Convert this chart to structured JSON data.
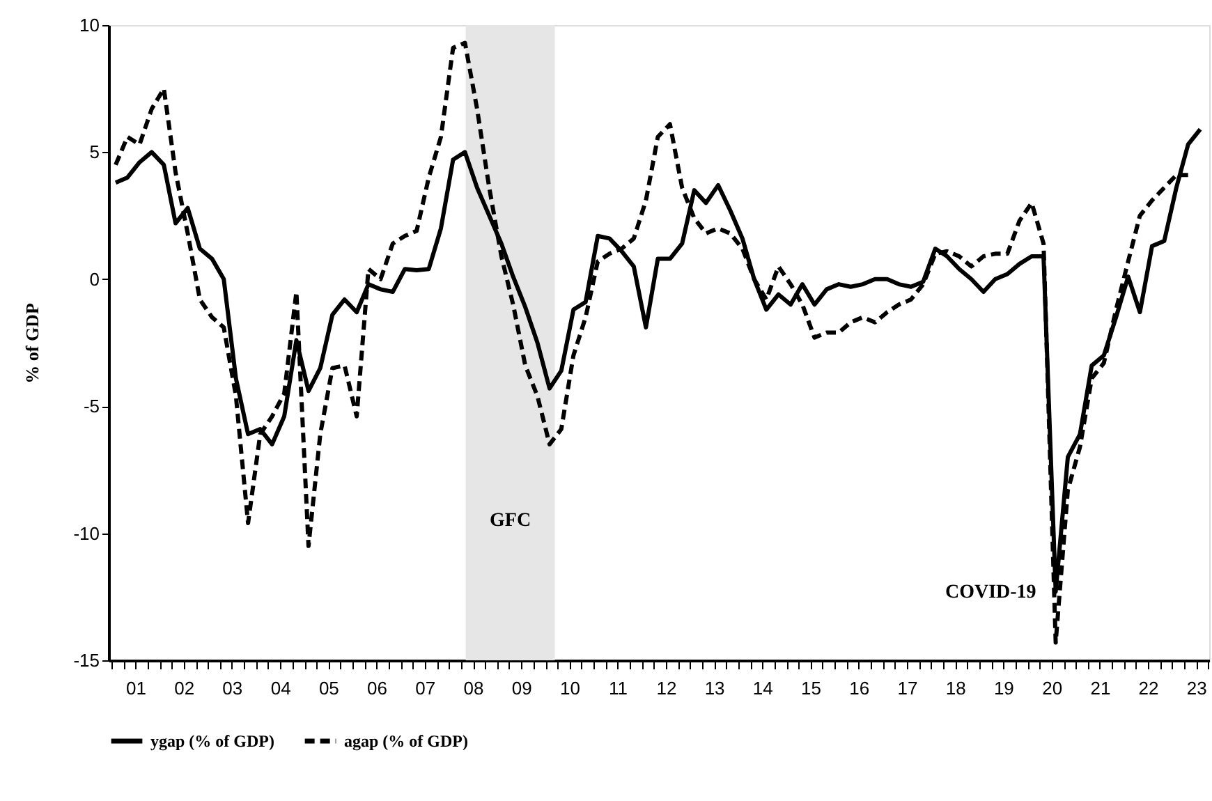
{
  "chart_data": {
    "type": "line",
    "ylabel": "% of GDP",
    "x": [
      "2001-02",
      "2001-05",
      "2001-08",
      "2001-11",
      "2002-02",
      "2002-05",
      "2002-08",
      "2002-11",
      "2003-02",
      "2003-05",
      "2003-08",
      "2003-11",
      "2004-02",
      "2004-05",
      "2004-08",
      "2004-11",
      "2005-02",
      "2005-05",
      "2005-08",
      "2005-11",
      "2006-02",
      "2006-05",
      "2006-08",
      "2006-11",
      "2007-02",
      "2007-05",
      "2007-08",
      "2007-11",
      "2008-02",
      "2008-05",
      "2008-08",
      "2008-11",
      "2009-02",
      "2009-05",
      "2009-08",
      "2009-11",
      "2010-02",
      "2010-05",
      "2010-08",
      "2010-11",
      "2011-02",
      "2011-05",
      "2011-08",
      "2011-11",
      "2012-02",
      "2012-05",
      "2012-08",
      "2012-11",
      "2013-02",
      "2013-05",
      "2013-08",
      "2013-11",
      "2014-02",
      "2014-05",
      "2014-08",
      "2014-11",
      "2015-02",
      "2015-05",
      "2015-08",
      "2015-11",
      "2016-02",
      "2016-05",
      "2016-08",
      "2016-11",
      "2017-02",
      "2017-05",
      "2017-08",
      "2017-11",
      "2018-02",
      "2018-05",
      "2018-08",
      "2018-11",
      "2019-02",
      "2019-05",
      "2019-08",
      "2019-11",
      "2020-02",
      "2020-05",
      "2020-08",
      "2020-11",
      "2021-02",
      "2021-05",
      "2021-08",
      "2021-11",
      "2022-02",
      "2022-05",
      "2022-08",
      "2022-11",
      "2023-02",
      "2023-05",
      "2023-08"
    ],
    "series": [
      {
        "name": "ygap (% of GDP)",
        "color": "#000000",
        "line_style": "solid",
        "values": [
          3.8,
          4.0,
          4.6,
          5.0,
          4.5,
          2.2,
          2.8,
          1.2,
          0.8,
          0.0,
          -3.9,
          -6.1,
          -5.9,
          -6.5,
          -5.4,
          -2.4,
          -4.4,
          -3.5,
          -1.4,
          -0.8,
          -1.3,
          -0.2,
          -0.4,
          -0.5,
          0.4,
          0.35,
          0.4,
          2.0,
          4.7,
          5.0,
          3.6,
          2.5,
          1.4,
          0.1,
          -1.1,
          -2.5,
          -4.3,
          -3.6,
          -1.2,
          -0.9,
          1.7,
          1.6,
          1.1,
          0.5,
          -1.9,
          0.8,
          0.8,
          1.4,
          3.5,
          3.0,
          3.7,
          2.7,
          1.6,
          0.0,
          -1.2,
          -0.6,
          -1.0,
          -0.2,
          -1.0,
          -0.4,
          -0.2,
          -0.3,
          -0.2,
          0.0,
          0.0,
          -0.2,
          -0.3,
          -0.1,
          1.2,
          0.9,
          0.4,
          0.0,
          -0.5,
          0.0,
          0.2,
          0.6,
          0.9,
          0.9,
          -12.3,
          -7.0,
          -6.1,
          -3.4,
          -3.0,
          -1.5,
          0.1,
          -1.3,
          1.3,
          1.5,
          3.6,
          5.3,
          5.9
        ]
      },
      {
        "name": "agap (% of GDP)",
        "color": "#000000",
        "line_style": "dashed",
        "values": [
          4.5,
          5.6,
          5.3,
          6.7,
          7.5,
          4.2,
          1.8,
          -0.8,
          -1.5,
          -1.9,
          -4.6,
          -9.6,
          -6.1,
          -5.4,
          -4.5,
          -0.5,
          -10.5,
          -6.1,
          -3.5,
          -3.4,
          -5.4,
          0.4,
          0.0,
          1.4,
          1.7,
          1.9,
          4.0,
          5.6,
          9.1,
          9.3,
          6.7,
          3.6,
          0.9,
          -1.0,
          -3.4,
          -4.6,
          -6.5,
          -5.9,
          -3.0,
          -1.5,
          0.7,
          1.0,
          1.2,
          1.6,
          3.1,
          5.6,
          6.1,
          3.6,
          2.4,
          1.8,
          2.0,
          1.8,
          1.2,
          0.0,
          -0.8,
          0.5,
          -0.2,
          -1.0,
          -2.3,
          -2.1,
          -2.1,
          -1.7,
          -1.5,
          -1.7,
          -1.3,
          -1.0,
          -0.8,
          -0.2,
          1.0,
          1.1,
          0.9,
          0.5,
          0.9,
          1.0,
          1.0,
          2.3,
          3.0,
          1.4,
          -14.3,
          -8.3,
          -6.6,
          -3.9,
          -3.3,
          -1.2,
          0.7,
          2.5,
          3.1,
          3.6,
          4.1,
          4.1,
          null
        ]
      }
    ],
    "xlim": [
      "2000-12-10",
      "2023-10-08"
    ],
    "xticks": [
      {
        "value": "2001-01",
        "label": null
      },
      {
        "value": "2001-04",
        "label": null
      },
      {
        "value": "2001-07",
        "label": "01"
      },
      {
        "value": "2001-10",
        "label": null
      },
      {
        "value": "2002-01",
        "label": null
      },
      {
        "value": "2002-04",
        "label": null
      },
      {
        "value": "2002-07",
        "label": "02"
      },
      {
        "value": "2002-10",
        "label": null
      },
      {
        "value": "2003-01",
        "label": null
      },
      {
        "value": "2003-04",
        "label": null
      },
      {
        "value": "2003-07",
        "label": "03"
      },
      {
        "value": "2003-10",
        "label": null
      },
      {
        "value": "2004-01",
        "label": null
      },
      {
        "value": "2004-04",
        "label": null
      },
      {
        "value": "2004-07",
        "label": "04"
      },
      {
        "value": "2004-10",
        "label": null
      },
      {
        "value": "2005-01",
        "label": null
      },
      {
        "value": "2005-04",
        "label": null
      },
      {
        "value": "2005-07",
        "label": "05"
      },
      {
        "value": "2005-10",
        "label": null
      },
      {
        "value": "2006-01",
        "label": null
      },
      {
        "value": "2006-04",
        "label": null
      },
      {
        "value": "2006-07",
        "label": "06"
      },
      {
        "value": "2006-10",
        "label": null
      },
      {
        "value": "2007-01",
        "label": null
      },
      {
        "value": "2007-04",
        "label": null
      },
      {
        "value": "2007-07",
        "label": "07"
      },
      {
        "value": "2007-10",
        "label": null
      },
      {
        "value": "2008-01",
        "label": null
      },
      {
        "value": "2008-04",
        "label": null
      },
      {
        "value": "2008-07",
        "label": "08"
      },
      {
        "value": "2008-10",
        "label": null
      },
      {
        "value": "2009-01",
        "label": null
      },
      {
        "value": "2009-04",
        "label": null
      },
      {
        "value": "2009-07",
        "label": "09"
      },
      {
        "value": "2009-10",
        "label": null
      },
      {
        "value": "2010-01",
        "label": null
      },
      {
        "value": "2010-04",
        "label": null
      },
      {
        "value": "2010-07",
        "label": "10"
      },
      {
        "value": "2010-10",
        "label": null
      },
      {
        "value": "2011-01",
        "label": null
      },
      {
        "value": "2011-04",
        "label": null
      },
      {
        "value": "2011-07",
        "label": "11"
      },
      {
        "value": "2011-10",
        "label": null
      },
      {
        "value": "2012-01",
        "label": null
      },
      {
        "value": "2012-04",
        "label": null
      },
      {
        "value": "2012-07",
        "label": "12"
      },
      {
        "value": "2012-10",
        "label": null
      },
      {
        "value": "2013-01",
        "label": null
      },
      {
        "value": "2013-04",
        "label": null
      },
      {
        "value": "2013-07",
        "label": "13"
      },
      {
        "value": "2013-10",
        "label": null
      },
      {
        "value": "2014-01",
        "label": null
      },
      {
        "value": "2014-04",
        "label": null
      },
      {
        "value": "2014-07",
        "label": "14"
      },
      {
        "value": "2014-10",
        "label": null
      },
      {
        "value": "2015-01",
        "label": null
      },
      {
        "value": "2015-04",
        "label": null
      },
      {
        "value": "2015-07",
        "label": "15"
      },
      {
        "value": "2015-10",
        "label": null
      },
      {
        "value": "2016-01",
        "label": null
      },
      {
        "value": "2016-04",
        "label": null
      },
      {
        "value": "2016-07",
        "label": "16"
      },
      {
        "value": "2016-10",
        "label": null
      },
      {
        "value": "2017-01",
        "label": null
      },
      {
        "value": "2017-04",
        "label": null
      },
      {
        "value": "2017-07",
        "label": "17"
      },
      {
        "value": "2017-10",
        "label": null
      },
      {
        "value": "2018-01",
        "label": null
      },
      {
        "value": "2018-04",
        "label": null
      },
      {
        "value": "2018-07",
        "label": "18"
      },
      {
        "value": "2018-10",
        "label": null
      },
      {
        "value": "2019-01",
        "label": null
      },
      {
        "value": "2019-04",
        "label": null
      },
      {
        "value": "2019-07",
        "label": "19"
      },
      {
        "value": "2019-10",
        "label": null
      },
      {
        "value": "2020-01",
        "label": null
      },
      {
        "value": "2020-04",
        "label": null
      },
      {
        "value": "2020-07",
        "label": "20"
      },
      {
        "value": "2020-10",
        "label": null
      },
      {
        "value": "2021-01",
        "label": null
      },
      {
        "value": "2021-04",
        "label": null
      },
      {
        "value": "2021-07",
        "label": "21"
      },
      {
        "value": "2021-10",
        "label": null
      },
      {
        "value": "2022-01",
        "label": null
      },
      {
        "value": "2022-04",
        "label": null
      },
      {
        "value": "2022-07",
        "label": "22"
      },
      {
        "value": "2022-10",
        "label": null
      },
      {
        "value": "2023-01",
        "label": null
      },
      {
        "value": "2023-04",
        "label": null
      },
      {
        "value": "2023-07",
        "label": "23"
      },
      {
        "value": "2023-10",
        "label": null
      }
    ],
    "ylim": [
      -15,
      10
    ],
    "yticks": [
      -15,
      -10,
      -5,
      0,
      5,
      10
    ],
    "grid": false,
    "legend": "bottom",
    "bands": [
      {
        "axis": "x",
        "from": "2008-05-07",
        "to": "2010-03-13",
        "label": "GFC",
        "color": "#e6e6e6"
      }
    ],
    "annotations": [
      {
        "text": "COVID-19",
        "x": "2020-08",
        "y": -12.3
      }
    ]
  }
}
